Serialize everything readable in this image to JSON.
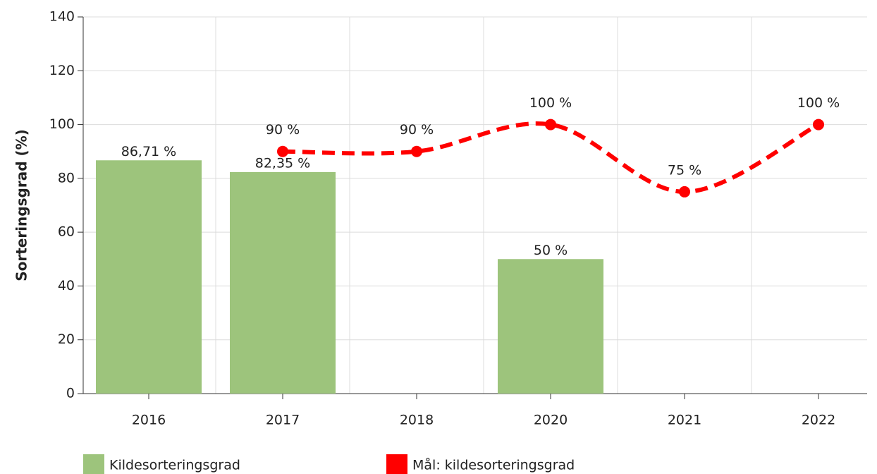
{
  "chart_data": {
    "type": "bar",
    "y_label": "Sorteringsgrad (%)",
    "categories": [
      "2016",
      "2017",
      "2018",
      "2020",
      "2021",
      "2022"
    ],
    "series": [
      {
        "name": "Kildesorteringsgrad",
        "type": "bar",
        "color": "#9dc47c",
        "values": [
          86.71,
          82.35,
          null,
          50,
          null,
          null
        ],
        "value_labels": [
          "86,71 %",
          "82,35 %",
          null,
          "50 %",
          null,
          null
        ]
      },
      {
        "name": "Mål: kildesorteringsgrad",
        "type": "line",
        "color": "#ff0000",
        "values": [
          null,
          90,
          90,
          100,
          75,
          100
        ],
        "value_labels": [
          null,
          "90 %",
          "90 %",
          "100 %",
          "75 %",
          "100 %"
        ]
      }
    ],
    "ylim": [
      0,
      140
    ],
    "yticks": [
      0,
      20,
      40,
      60,
      80,
      100,
      120,
      140
    ],
    "grid": true
  }
}
